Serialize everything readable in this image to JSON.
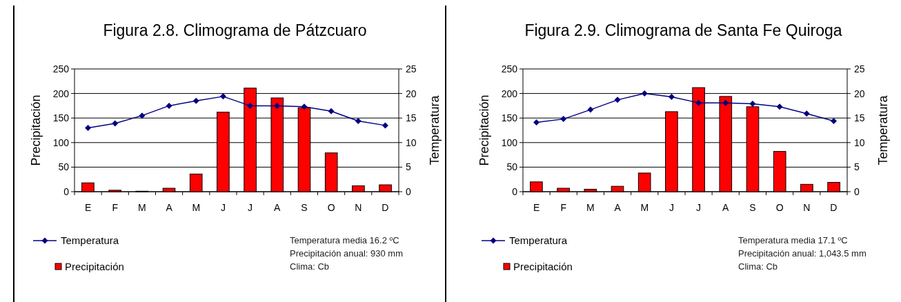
{
  "chart_data": [
    {
      "type": "bar",
      "title": "Figura 2.8. Climograma de Pátzcuaro",
      "ylabel": "Precipitación",
      "y2label": "Temperatura",
      "categories": [
        "E",
        "F",
        "M",
        "A",
        "M",
        "J",
        "J",
        "A",
        "S",
        "O",
        "N",
        "D"
      ],
      "ylim": [
        0,
        250
      ],
      "yticks": [
        0,
        50,
        100,
        150,
        200,
        250
      ],
      "y2lim": [
        0,
        25
      ],
      "y2ticks": [
        0,
        5,
        10,
        15,
        20,
        25
      ],
      "grid": "y",
      "legend": "bottom left",
      "marker": "diamond",
      "annotations": [
        "Temperatura media 16.2 ºC",
        "Precipitación anual: 930 mm",
        "Clima: Cb"
      ],
      "series": [
        {
          "name": "Temperatura",
          "type": "line",
          "axis": "y2",
          "color": "#000080",
          "values": [
            13,
            13.9,
            15.5,
            17.5,
            18.5,
            19.4,
            17.5,
            17.5,
            17.3,
            16.4,
            14.4,
            13.5
          ]
        },
        {
          "name": "Precipitación",
          "color": "#ff0000",
          "values": [
            18,
            3,
            1,
            7,
            36,
            162,
            211,
            191,
            171,
            79,
            12,
            14
          ]
        }
      ]
    },
    {
      "type": "bar",
      "title": "Figura 2.9. Climograma de Santa Fe Quiroga",
      "ylabel": "Precipitación",
      "y2label": "Temperatura",
      "categories": [
        "E",
        "F",
        "M",
        "A",
        "M",
        "J",
        "J",
        "A",
        "S",
        "O",
        "N",
        "D"
      ],
      "ylim": [
        0,
        250
      ],
      "yticks": [
        0,
        50,
        100,
        150,
        200,
        250
      ],
      "y2lim": [
        0,
        25
      ],
      "y2ticks": [
        0,
        5,
        10,
        15,
        20,
        25
      ],
      "grid": "y",
      "legend": "bottom left",
      "marker": "diamond",
      "annotations": [
        "Temperatura media 17.1 ºC",
        "Precipitación anual: 1,043.5 mm",
        "Clima: Cb"
      ],
      "series": [
        {
          "name": "Temperatura",
          "type": "line",
          "axis": "y2",
          "color": "#000080",
          "values": [
            14.1,
            14.8,
            16.7,
            18.7,
            20,
            19.3,
            18.1,
            18.1,
            17.9,
            17.3,
            15.9,
            14.4
          ]
        },
        {
          "name": "Precipitación",
          "color": "#ff0000",
          "values": [
            20,
            7,
            5,
            11,
            38,
            163,
            212,
            194,
            173,
            82,
            15,
            19
          ]
        }
      ]
    }
  ]
}
